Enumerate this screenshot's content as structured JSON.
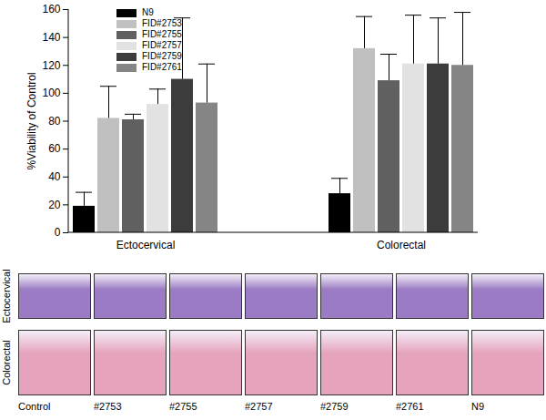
{
  "chart_data": {
    "type": "bar",
    "y_label": "%Viability of Control",
    "categories": [
      "Ectocervical",
      "Colorectal"
    ],
    "ylim": [
      0,
      160
    ],
    "yticks": [
      0,
      20,
      40,
      60,
      80,
      100,
      120,
      140,
      160
    ],
    "legend": "top-left",
    "series": [
      {
        "name": "N9",
        "color": "#000000",
        "values": [
          19,
          28
        ],
        "errors": [
          10,
          11
        ]
      },
      {
        "name": "FID#2753",
        "color": "#c0c0c0",
        "values": [
          82,
          132
        ],
        "errors": [
          23,
          23
        ]
      },
      {
        "name": "FID#2755",
        "color": "#606060",
        "values": [
          81,
          109
        ],
        "errors": [
          4,
          19
        ]
      },
      {
        "name": "FID#2757",
        "color": "#e2e2e2",
        "values": [
          92,
          121
        ],
        "errors": [
          11,
          35
        ]
      },
      {
        "name": "FID#2759",
        "color": "#3c3c3c",
        "values": [
          110,
          121
        ],
        "errors": [
          44,
          33
        ]
      },
      {
        "name": "FID#2761",
        "color": "#858585",
        "values": [
          93,
          120
        ],
        "errors": [
          28,
          38
        ]
      }
    ]
  },
  "panels": {
    "rows": [
      "Ectocervical",
      "Colorectal"
    ],
    "columns": [
      "Control",
      "#2753",
      "#2755",
      "#2757",
      "#2759",
      "#2761",
      "N9"
    ]
  }
}
